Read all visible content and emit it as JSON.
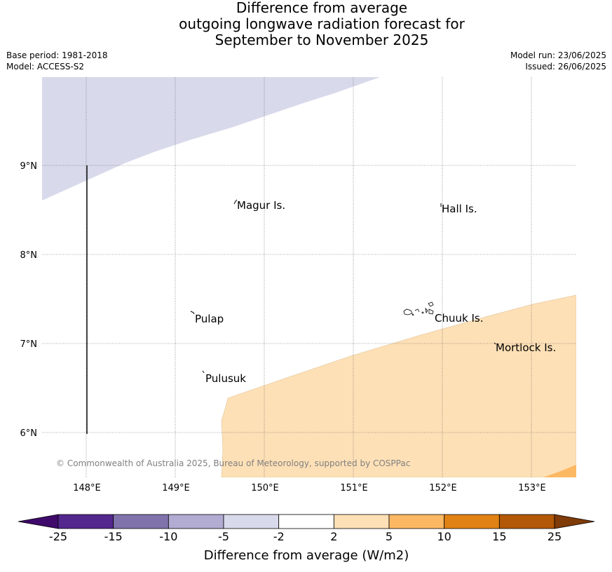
{
  "title": {
    "line1": "Difference from average",
    "line2": "outgoing longwave radiation forecast for",
    "line3": "September to November 2025"
  },
  "meta": {
    "base_period": "Base period: 1981-2018",
    "model": "Model: ACCESS-S2",
    "model_run": "Model run: 23/06/2025",
    "issued": "Issued: 26/06/2025"
  },
  "map": {
    "lon_ticks": [
      "148°E",
      "149°E",
      "150°E",
      "151°E",
      "152°E",
      "153°E"
    ],
    "lat_ticks": [
      "9°N",
      "8°N",
      "7°N",
      "6°N"
    ],
    "places": [
      {
        "id": "magur",
        "label": "Magur Is."
      },
      {
        "id": "hall",
        "label": "Hall Is."
      },
      {
        "id": "pulap",
        "label": "Pulap"
      },
      {
        "id": "chuuk",
        "label": "Chuuk Is."
      },
      {
        "id": "mortlock",
        "label": "Mortlock Is."
      },
      {
        "id": "pulusuk",
        "label": "Pulusuk"
      }
    ],
    "copyright": "© Commonwealth of Australia 2025, Bureau of Meteorology, supported by COSPPac"
  },
  "colorbar": {
    "label": "Difference from average (W/m2)",
    "ticks": [
      "-25",
      "-15",
      "-10",
      "-5",
      "-2",
      "2",
      "5",
      "10",
      "15",
      "25"
    ],
    "colors": {
      "below_min": "#3f0a6b",
      "bins": [
        "#54278f",
        "#8073ac",
        "#b2abd2",
        "#d8daeb",
        "#ffffff",
        "#fee0b6",
        "#fdb863",
        "#e08214",
        "#b35806"
      ],
      "above_max": "#7f3b08"
    }
  }
}
